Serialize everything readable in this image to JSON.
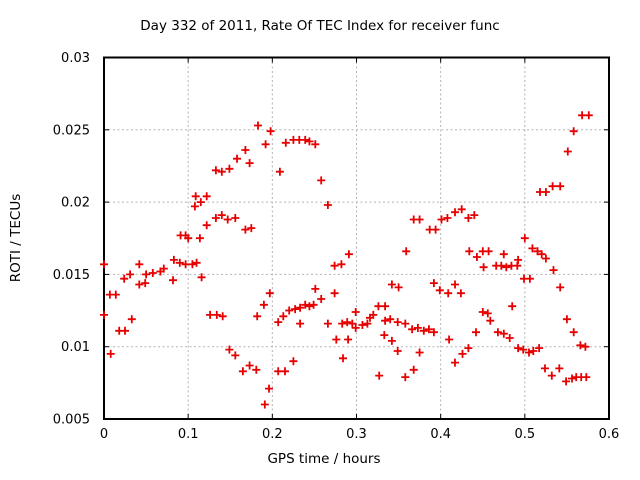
{
  "page": {
    "background": "#ffffff"
  },
  "chart_data": {
    "type": "scatter",
    "title": "Day 332 of 2011, Rate Of TEC Index for receiver func",
    "xlabel": "GPS time / hours",
    "ylabel": "ROTI / TECUs",
    "xlim": [
      0,
      0.6
    ],
    "ylim": [
      0.005,
      0.03
    ],
    "grid": true,
    "legend": null,
    "marker": "plus",
    "marker_color": "#e60000",
    "grid_color": "#b3b3b3",
    "axis_color": "#000000",
    "xticks": [
      {
        "value": 0,
        "label": "0"
      },
      {
        "value": 0.1,
        "label": "0.1"
      },
      {
        "value": 0.2,
        "label": "0.2"
      },
      {
        "value": 0.3,
        "label": "0.3"
      },
      {
        "value": 0.4,
        "label": "0.4"
      },
      {
        "value": 0.5,
        "label": "0.5"
      },
      {
        "value": 0.6,
        "label": "0.6"
      }
    ],
    "yticks": [
      {
        "value": 0.005,
        "label": "0.005"
      },
      {
        "value": 0.01,
        "label": "0.01"
      },
      {
        "value": 0.015,
        "label": "0.015"
      },
      {
        "value": 0.02,
        "label": "0.02"
      },
      {
        "value": 0.025,
        "label": "0.025"
      },
      {
        "value": 0.03,
        "label": "0.03"
      }
    ],
    "points": [
      [
        0.0,
        0.0157
      ],
      [
        0.0,
        0.0122
      ],
      [
        0.007,
        0.0136
      ],
      [
        0.008,
        0.0095
      ],
      [
        0.014,
        0.0136
      ],
      [
        0.018,
        0.0111
      ],
      [
        0.024,
        0.0147
      ],
      [
        0.025,
        0.0111
      ],
      [
        0.031,
        0.015
      ],
      [
        0.033,
        0.0119
      ],
      [
        0.042,
        0.0157
      ],
      [
        0.042,
        0.0143
      ],
      [
        0.049,
        0.0144
      ],
      [
        0.05,
        0.015
      ],
      [
        0.058,
        0.0151
      ],
      [
        0.067,
        0.0152
      ],
      [
        0.071,
        0.0154
      ],
      [
        0.082,
        0.0146
      ],
      [
        0.083,
        0.016
      ],
      [
        0.09,
        0.0158
      ],
      [
        0.091,
        0.0177
      ],
      [
        0.097,
        0.0177
      ],
      [
        0.097,
        0.0157
      ],
      [
        0.1,
        0.0175
      ],
      [
        0.105,
        0.0157
      ],
      [
        0.108,
        0.0197
      ],
      [
        0.109,
        0.0204
      ],
      [
        0.11,
        0.0158
      ],
      [
        0.114,
        0.0175
      ],
      [
        0.115,
        0.02
      ],
      [
        0.116,
        0.0148
      ],
      [
        0.122,
        0.0204
      ],
      [
        0.122,
        0.0184
      ],
      [
        0.126,
        0.0122
      ],
      [
        0.133,
        0.0222
      ],
      [
        0.133,
        0.0189
      ],
      [
        0.134,
        0.0122
      ],
      [
        0.14,
        0.0221
      ],
      [
        0.14,
        0.0191
      ],
      [
        0.141,
        0.0121
      ],
      [
        0.147,
        0.0188
      ],
      [
        0.149,
        0.0223
      ],
      [
        0.149,
        0.0098
      ],
      [
        0.156,
        0.0189
      ],
      [
        0.156,
        0.0094
      ],
      [
        0.158,
        0.023
      ],
      [
        0.165,
        0.0083
      ],
      [
        0.168,
        0.0236
      ],
      [
        0.168,
        0.0181
      ],
      [
        0.173,
        0.0227
      ],
      [
        0.173,
        0.0087
      ],
      [
        0.175,
        0.0182
      ],
      [
        0.181,
        0.0084
      ],
      [
        0.182,
        0.0121
      ],
      [
        0.183,
        0.0253
      ],
      [
        0.19,
        0.0129
      ],
      [
        0.191,
        0.006
      ],
      [
        0.192,
        0.024
      ],
      [
        0.196,
        0.0071
      ],
      [
        0.197,
        0.0137
      ],
      [
        0.198,
        0.0249
      ],
      [
        0.207,
        0.0117
      ],
      [
        0.207,
        0.0083
      ],
      [
        0.209,
        0.0221
      ],
      [
        0.213,
        0.0121
      ],
      [
        0.215,
        0.0083
      ],
      [
        0.216,
        0.0241
      ],
      [
        0.22,
        0.0125
      ],
      [
        0.225,
        0.0243
      ],
      [
        0.225,
        0.009
      ],
      [
        0.227,
        0.0126
      ],
      [
        0.232,
        0.0243
      ],
      [
        0.233,
        0.0127
      ],
      [
        0.233,
        0.0116
      ],
      [
        0.239,
        0.0243
      ],
      [
        0.239,
        0.0129
      ],
      [
        0.244,
        0.0242
      ],
      [
        0.244,
        0.0128
      ],
      [
        0.249,
        0.0129
      ],
      [
        0.251,
        0.024
      ],
      [
        0.251,
        0.014
      ],
      [
        0.258,
        0.0215
      ],
      [
        0.258,
        0.0133
      ],
      [
        0.266,
        0.0198
      ],
      [
        0.266,
        0.0116
      ],
      [
        0.274,
        0.0156
      ],
      [
        0.274,
        0.0137
      ],
      [
        0.276,
        0.0105
      ],
      [
        0.282,
        0.0157
      ],
      [
        0.283,
        0.0116
      ],
      [
        0.284,
        0.0092
      ],
      [
        0.289,
        0.0117
      ],
      [
        0.29,
        0.0105
      ],
      [
        0.291,
        0.0164
      ],
      [
        0.295,
        0.0116
      ],
      [
        0.299,
        0.0124
      ],
      [
        0.299,
        0.0113
      ],
      [
        0.307,
        0.0115
      ],
      [
        0.313,
        0.0116
      ],
      [
        0.316,
        0.012
      ],
      [
        0.32,
        0.0122
      ],
      [
        0.326,
        0.0128
      ],
      [
        0.327,
        0.008
      ],
      [
        0.333,
        0.0108
      ],
      [
        0.334,
        0.0128
      ],
      [
        0.334,
        0.0118
      ],
      [
        0.34,
        0.0119
      ],
      [
        0.342,
        0.0143
      ],
      [
        0.342,
        0.0104
      ],
      [
        0.349,
        0.0117
      ],
      [
        0.349,
        0.0097
      ],
      [
        0.35,
        0.0141
      ],
      [
        0.358,
        0.0116
      ],
      [
        0.358,
        0.0079
      ],
      [
        0.359,
        0.0166
      ],
      [
        0.366,
        0.0112
      ],
      [
        0.368,
        0.0188
      ],
      [
        0.368,
        0.0084
      ],
      [
        0.373,
        0.0113
      ],
      [
        0.375,
        0.0188
      ],
      [
        0.375,
        0.0096
      ],
      [
        0.38,
        0.0111
      ],
      [
        0.386,
        0.0112
      ],
      [
        0.387,
        0.0181
      ],
      [
        0.392,
        0.0144
      ],
      [
        0.392,
        0.011
      ],
      [
        0.394,
        0.0181
      ],
      [
        0.399,
        0.0139
      ],
      [
        0.401,
        0.0188
      ],
      [
        0.408,
        0.0189
      ],
      [
        0.409,
        0.0137
      ],
      [
        0.41,
        0.0105
      ],
      [
        0.417,
        0.0193
      ],
      [
        0.417,
        0.0143
      ],
      [
        0.417,
        0.0089
      ],
      [
        0.424,
        0.0137
      ],
      [
        0.425,
        0.0195
      ],
      [
        0.426,
        0.0095
      ],
      [
        0.433,
        0.0189
      ],
      [
        0.433,
        0.0099
      ],
      [
        0.434,
        0.0166
      ],
      [
        0.44,
        0.0191
      ],
      [
        0.442,
        0.011
      ],
      [
        0.443,
        0.0162
      ],
      [
        0.45,
        0.0166
      ],
      [
        0.45,
        0.0124
      ],
      [
        0.451,
        0.0155
      ],
      [
        0.456,
        0.0123
      ],
      [
        0.457,
        0.0166
      ],
      [
        0.459,
        0.0118
      ],
      [
        0.466,
        0.0156
      ],
      [
        0.468,
        0.011
      ],
      [
        0.472,
        0.0156
      ],
      [
        0.475,
        0.0164
      ],
      [
        0.475,
        0.0109
      ],
      [
        0.478,
        0.0155
      ],
      [
        0.482,
        0.0106
      ],
      [
        0.484,
        0.0156
      ],
      [
        0.485,
        0.0128
      ],
      [
        0.491,
        0.0156
      ],
      [
        0.492,
        0.016
      ],
      [
        0.492,
        0.0099
      ],
      [
        0.498,
        0.0098
      ],
      [
        0.499,
        0.0147
      ],
      [
        0.5,
        0.0175
      ],
      [
        0.505,
        0.0096
      ],
      [
        0.506,
        0.0147
      ],
      [
        0.509,
        0.0168
      ],
      [
        0.51,
        0.0097
      ],
      [
        0.515,
        0.0166
      ],
      [
        0.517,
        0.0099
      ],
      [
        0.518,
        0.0207
      ],
      [
        0.52,
        0.0164
      ],
      [
        0.524,
        0.0085
      ],
      [
        0.525,
        0.0207
      ],
      [
        0.525,
        0.0161
      ],
      [
        0.532,
        0.008
      ],
      [
        0.533,
        0.0211
      ],
      [
        0.534,
        0.0153
      ],
      [
        0.541,
        0.0085
      ],
      [
        0.542,
        0.0211
      ],
      [
        0.542,
        0.0141
      ],
      [
        0.549,
        0.0076
      ],
      [
        0.55,
        0.0119
      ],
      [
        0.551,
        0.0235
      ],
      [
        0.556,
        0.0078
      ],
      [
        0.558,
        0.0249
      ],
      [
        0.558,
        0.011
      ],
      [
        0.561,
        0.0079
      ],
      [
        0.566,
        0.0101
      ],
      [
        0.567,
        0.0079
      ],
      [
        0.568,
        0.026
      ],
      [
        0.572,
        0.01
      ],
      [
        0.573,
        0.0079
      ],
      [
        0.576,
        0.026
      ]
    ]
  }
}
